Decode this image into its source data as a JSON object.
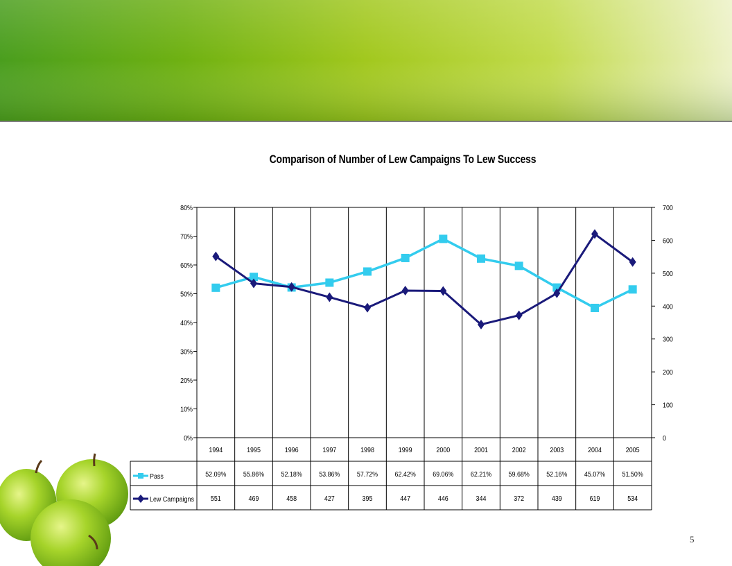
{
  "slide": {
    "page_number": "5"
  },
  "colors": {
    "pass": "#33ccee",
    "campaigns": "#1a1a7a"
  },
  "chart_data": {
    "type": "line",
    "title": "Comparison of Number of Lew Campaigns To Lew Success",
    "categories": [
      "1994",
      "1995",
      "1996",
      "1997",
      "1998",
      "1999",
      "2000",
      "2001",
      "2002",
      "2003",
      "2004",
      "2005"
    ],
    "y_left": {
      "ticks": [
        "0%",
        "10%",
        "20%",
        "30%",
        "40%",
        "50%",
        "60%",
        "70%",
        "80%"
      ],
      "range": [
        0,
        80
      ]
    },
    "y_right": {
      "ticks": [
        "0",
        "100",
        "200",
        "300",
        "400",
        "500",
        "600",
        "700"
      ],
      "range": [
        0,
        700
      ]
    },
    "grid": "vertical",
    "legend": "data-table-bottom",
    "series": [
      {
        "name": "Pass",
        "axis": "left",
        "marker": "square",
        "values": [
          52.09,
          55.86,
          52.18,
          53.86,
          57.72,
          62.42,
          69.06,
          62.21,
          59.68,
          52.16,
          45.07,
          51.5
        ],
        "labels": [
          "52.09%",
          "55.86%",
          "52.18%",
          "53.86%",
          "57.72%",
          "62.42%",
          "69.06%",
          "62.21%",
          "59.68%",
          "52.16%",
          "45.07%",
          "51.50%"
        ]
      },
      {
        "name": "Lew Campaigns",
        "axis": "right",
        "marker": "diamond",
        "values": [
          551,
          469,
          458,
          427,
          395,
          447,
          446,
          344,
          372,
          439,
          619,
          534
        ],
        "labels": [
          "551",
          "469",
          "458",
          "427",
          "395",
          "447",
          "446",
          "344",
          "372",
          "439",
          "619",
          "534"
        ]
      }
    ]
  }
}
